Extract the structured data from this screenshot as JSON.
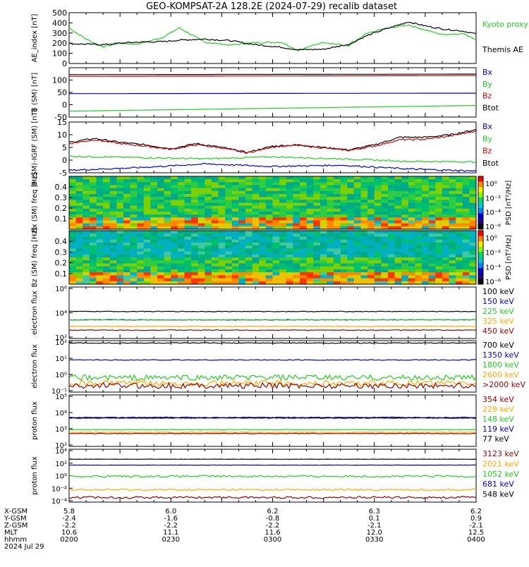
{
  "title": "GEO-KOMPSAT-2A 128.2E (2024-07-29) recalib dataset",
  "colors": {
    "black": "#000000",
    "green": "#22cc22",
    "red": "#cc0000",
    "blue": "#0000cc",
    "orange": "#ffaa00",
    "darkred": "#990000",
    "lime": "#00cc33"
  },
  "chart_data": [
    {
      "type": "line",
      "id": "ae",
      "ylabel": "AE_index [nT]",
      "ylim": [
        0,
        500
      ],
      "yticks": [
        0,
        100,
        200,
        300,
        400,
        500
      ],
      "legend": [
        {
          "name": "Kyoto proxy AE",
          "color": "#22cc22"
        },
        {
          "name": "Themis AE",
          "color": "#000000"
        }
      ],
      "series": [
        {
          "name": "Kyoto proxy AE",
          "color": "#22cc22",
          "x": [
            0,
            10,
            20,
            30,
            40,
            55,
            65,
            80,
            95,
            110,
            125,
            135,
            150,
            165,
            175,
            185,
            200,
            210,
            220,
            232,
            240
          ],
          "y": [
            350,
            240,
            165,
            200,
            190,
            255,
            350,
            210,
            180,
            205,
            210,
            130,
            210,
            170,
            290,
            340,
            380,
            330,
            285,
            295,
            240
          ]
        },
        {
          "name": "Themis AE",
          "color": "#000000",
          "x": [
            0,
            10,
            20,
            30,
            40,
            55,
            65,
            80,
            95,
            110,
            125,
            135,
            150,
            165,
            175,
            185,
            200,
            210,
            220,
            232,
            240
          ],
          "y": [
            195,
            190,
            185,
            200,
            210,
            215,
            230,
            240,
            225,
            185,
            160,
            135,
            140,
            190,
            270,
            330,
            410,
            370,
            340,
            320,
            290
          ]
        }
      ]
    },
    {
      "type": "line",
      "id": "bsm",
      "ylabel": "B (SM) [nT]",
      "ylim": [
        -50,
        150
      ],
      "yticks": [
        -50,
        0,
        50,
        100
      ],
      "legend": [
        {
          "name": "Bx",
          "color": "#0000cc"
        },
        {
          "name": "By",
          "color": "#22cc22"
        },
        {
          "name": "Bz",
          "color": "#cc0000"
        },
        {
          "name": "Btot",
          "color": "#000000"
        }
      ],
      "series": [
        {
          "name": "Btot",
          "color": "#000000",
          "x": [
            0,
            240
          ],
          "y": [
            122,
            124
          ]
        },
        {
          "name": "Bz",
          "color": "#cc0000",
          "x": [
            0,
            240
          ],
          "y": [
            115,
            118
          ]
        },
        {
          "name": "Bx",
          "color": "#0000cc",
          "x": [
            0,
            240
          ],
          "y": [
            45,
            47
          ]
        },
        {
          "name": "By",
          "color": "#22cc22",
          "x": [
            0,
            240
          ],
          "y": [
            -26,
            -3
          ]
        }
      ]
    },
    {
      "type": "line",
      "id": "bsmigrf",
      "ylabel": "B (SM)-IGRF (SM) [nT]",
      "ylim": [
        -5,
        15
      ],
      "yticks": [
        -5,
        0,
        5,
        10,
        15
      ],
      "legend": [
        {
          "name": "Bx",
          "color": "#0000cc"
        },
        {
          "name": "By",
          "color": "#22cc22"
        },
        {
          "name": "Bz",
          "color": "#cc0000"
        },
        {
          "name": "Btot",
          "color": "#000000"
        }
      ],
      "series": [
        {
          "name": "Btot",
          "color": "#000000",
          "x": [
            0,
            15,
            30,
            45,
            60,
            75,
            90,
            105,
            120,
            135,
            150,
            165,
            180,
            195,
            210,
            225,
            240
          ],
          "y": [
            7,
            8.5,
            7,
            6,
            4.5,
            6.5,
            5,
            3,
            5.5,
            6,
            5,
            4,
            6,
            9,
            9,
            10,
            12
          ]
        },
        {
          "name": "Bz",
          "color": "#cc0000",
          "x": [
            0,
            15,
            30,
            45,
            60,
            75,
            90,
            105,
            120,
            135,
            150,
            165,
            180,
            195,
            210,
            225,
            240
          ],
          "y": [
            6.5,
            8,
            6.5,
            5.5,
            4.2,
            6,
            4.8,
            2.8,
            5.2,
            5.8,
            4.8,
            3.8,
            5.5,
            8,
            8.2,
            9.5,
            11.5
          ]
        },
        {
          "name": "By",
          "color": "#22cc22",
          "x": [
            0,
            40,
            80,
            120,
            160,
            200,
            240
          ],
          "y": [
            1.5,
            1,
            0.5,
            1.3,
            0.5,
            -0.5,
            -0.7
          ]
        },
        {
          "name": "Bx",
          "color": "#0000cc",
          "x": [
            0,
            40,
            80,
            120,
            160,
            200,
            240
          ],
          "y": [
            -4,
            -3,
            -1.5,
            -2.5,
            -2,
            -3.5,
            -4.3
          ]
        }
      ]
    },
    {
      "type": "heatmap",
      "id": "bxspec",
      "ylabel": "Bx (SM) freq [Hz]",
      "ylim": [
        0,
        0.5
      ],
      "yticks": [
        0.1,
        0.2,
        0.3,
        0.4
      ],
      "cbar_label": "PSD [nT²/Hz]",
      "cbar_ticks": [
        "10⁰",
        "10⁻²",
        "10⁻⁴",
        "10⁻⁶"
      ]
    },
    {
      "type": "heatmap",
      "id": "bzspec",
      "ylabel": "Bz (SM) freq [Hz]",
      "ylim": [
        0,
        0.5
      ],
      "yticks": [
        0.1,
        0.2,
        0.3,
        0.4
      ],
      "cbar_label": "PSD [nT²/Hz]",
      "cbar_ticks": [
        "10⁰",
        "10⁻²",
        "10⁻⁴",
        "10⁻⁶"
      ]
    },
    {
      "type": "line",
      "id": "eflux1",
      "ylabel": "electron flux",
      "log": true,
      "ylim": [
        2,
        6
      ],
      "yticklabels": [
        "10²",
        "10⁴",
        "10⁶"
      ],
      "legend": [
        {
          "name": "100 keV",
          "color": "#000000"
        },
        {
          "name": "150 keV",
          "color": "#0000cc"
        },
        {
          "name": "225 keV",
          "color": "#22cc22"
        },
        {
          "name": "325 keV",
          "color": "#ffaa00"
        },
        {
          "name": "450 keV",
          "color": "#990000"
        }
      ],
      "series": [
        {
          "name": "100 keV",
          "color": "#000000",
          "level": 4.1
        },
        {
          "name": "150 keV",
          "color": "#0000cc",
          "level": 3.45
        },
        {
          "name": "225 keV",
          "color": "#22cc22",
          "level": 3.45
        },
        {
          "name": "325 keV",
          "color": "#ffaa00",
          "level": 2.95
        },
        {
          "name": "450 keV",
          "color": "#990000",
          "level": 2.65
        }
      ]
    },
    {
      "type": "line",
      "id": "eflux2",
      "ylabel": "electron flux",
      "log": true,
      "ylim": [
        -1.2,
        2
      ],
      "yticklabels": [
        "10⁻¹",
        "10⁰",
        "10¹",
        "10²"
      ],
      "legend": [
        {
          "name": "700 keV",
          "color": "#000000"
        },
        {
          "name": "1350 keV",
          "color": "#0000cc"
        },
        {
          "name": "1800 keV",
          "color": "#22cc22"
        },
        {
          "name": "2600 keV",
          "color": "#ffaa00"
        },
        {
          "name": ">2000 keV",
          "color": "#990000"
        }
      ],
      "series": [
        {
          "name": "700 keV",
          "color": "#000000",
          "level": 1.85
        },
        {
          "name": "1350 keV",
          "color": "#0000cc",
          "level": 0.8
        },
        {
          "name": "1800 keV",
          "color": "#22cc22",
          "level": -0.3
        },
        {
          "name": "2600 keV",
          "color": "#ffaa00",
          "level": -0.65
        },
        {
          "name": ">2000 keV",
          "color": "#990000",
          "level": -0.8
        }
      ]
    },
    {
      "type": "line",
      "id": "pflux1",
      "ylabel": "proton flux",
      "log": true,
      "ylim": [
        2,
        6
      ],
      "yticklabels": [
        "10²",
        "10³",
        "10⁴",
        "10⁵"
      ],
      "legend": [
        {
          "name": "354 keV",
          "color": "#990000"
        },
        {
          "name": "229 keV",
          "color": "#ffaa00"
        },
        {
          "name": "148 keV",
          "color": "#22cc22"
        },
        {
          "name": "119 keV",
          "color": "#0000cc"
        },
        {
          "name": "77 keV",
          "color": "#000000"
        }
      ],
      "series": [
        {
          "name": "77 keV",
          "color": "#000000",
          "level": 4.25
        },
        {
          "name": "119 keV",
          "color": "#0000cc",
          "level": 4.2
        },
        {
          "name": "148 keV",
          "color": "#22cc22",
          "level": 3.3
        },
        {
          "name": "229 keV",
          "color": "#ffaa00",
          "level": 3.1
        },
        {
          "name": "354 keV",
          "color": "#990000",
          "level": 3.0
        }
      ]
    },
    {
      "type": "line",
      "id": "pflux2",
      "ylabel": "proton flux",
      "log": true,
      "ylim": [
        -5,
        4
      ],
      "yticklabels": [
        "10⁻⁴",
        "10⁻²",
        "10⁰",
        "10²",
        "10⁴"
      ],
      "legend": [
        {
          "name": "3123 keV",
          "color": "#990000"
        },
        {
          "name": "2021 keV",
          "color": "#ffaa00"
        },
        {
          "name": "1052 keV",
          "color": "#22cc22"
        },
        {
          "name": "681 keV",
          "color": "#0000cc"
        },
        {
          "name": "548 keV",
          "color": "#000000"
        }
      ],
      "series": [
        {
          "name": "548 keV",
          "color": "#000000",
          "level": 2.3
        },
        {
          "name": "681 keV",
          "color": "#0000cc",
          "level": 1.3
        },
        {
          "name": "1052 keV",
          "color": "#22cc22",
          "level": -0.6
        },
        {
          "name": "2021 keV",
          "color": "#ffaa00",
          "level": -2.9
        },
        {
          "name": "3123 keV",
          "color": "#990000",
          "level": -4.2
        }
      ]
    }
  ],
  "time_axis": {
    "row_labels": [
      "X-GSM",
      "Y-GSM",
      "Z-GSM",
      "MLT",
      "hhmm",
      "2024 Jul 29"
    ],
    "columns": [
      {
        "x": 0,
        "vals": [
          "5.8",
          "-2.4",
          "-2.2",
          "10.6",
          "0200"
        ]
      },
      {
        "x": 60,
        "vals": [
          "6.0",
          "-1.6",
          "-2.2",
          "11.1",
          "0230"
        ]
      },
      {
        "x": 120,
        "vals": [
          "6.2",
          "-0.8",
          "-2.2",
          "11.6",
          "0300"
        ]
      },
      {
        "x": 180,
        "vals": [
          "6.3",
          "0.1",
          "-2.1",
          "12.0",
          "0330"
        ]
      },
      {
        "x": 240,
        "vals": [
          "6.2",
          "0.9",
          "-2.1",
          "12.5",
          "0400"
        ]
      }
    ]
  }
}
